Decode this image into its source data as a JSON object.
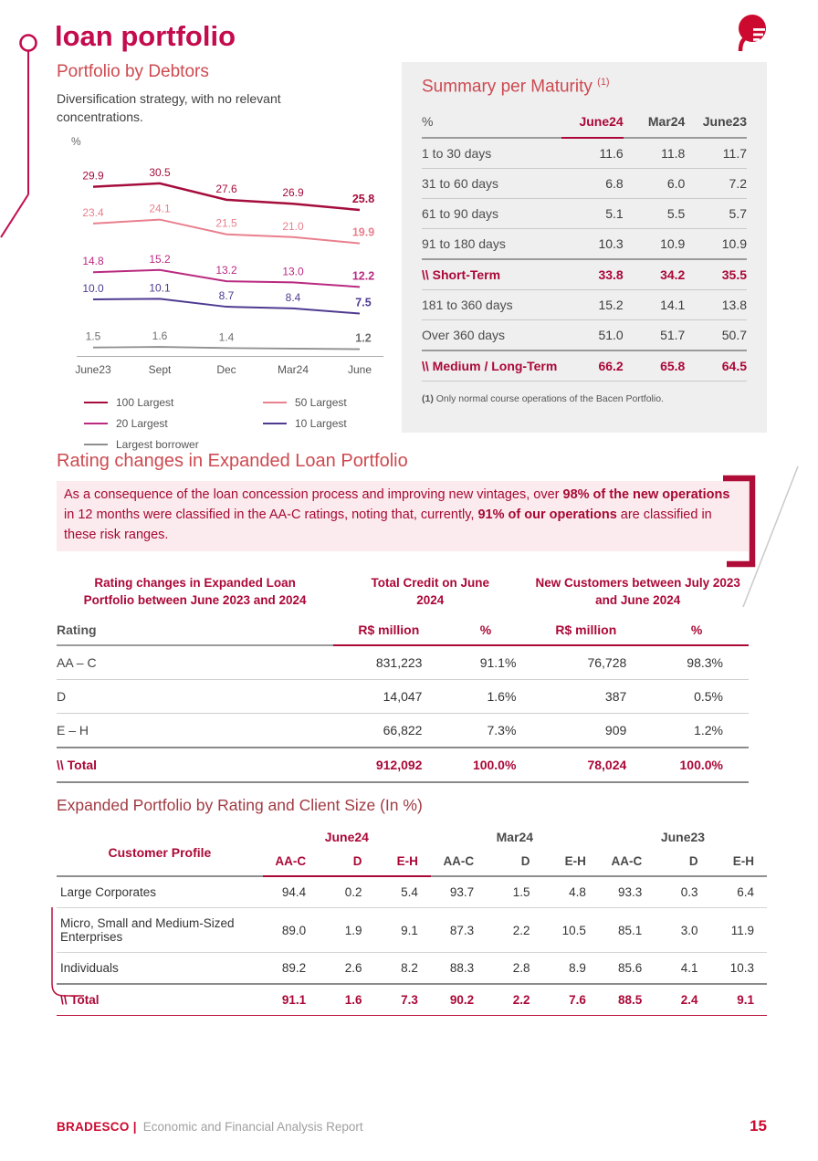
{
  "page": {
    "title": "loan portfolio"
  },
  "footer": {
    "brand": "BRADESCO |",
    "report_title": "Economic and Financial Analysis Report",
    "page_number": "15"
  },
  "portfolio_by_debtors": {
    "heading": "Portfolio by Debtors",
    "subtitle": "Diversification strategy, with no relevant concentrations.",
    "y_axis_label": "%",
    "chart_data": {
      "type": "line",
      "categories": [
        "June23",
        "Sept",
        "Dec",
        "Mar24",
        "June"
      ],
      "ylim": [
        0,
        33
      ],
      "grid": false,
      "legend_position": "bottom",
      "series": [
        {
          "name": "100 Largest",
          "color": "#a50d3c",
          "values": [
            29.9,
            30.5,
            27.6,
            26.9,
            25.8
          ],
          "labels": [
            "29.9",
            "30.5",
            "27.6",
            "26.9",
            "25.8"
          ]
        },
        {
          "name": "50 Largest",
          "color": "#e9808e",
          "values": [
            23.4,
            24.1,
            21.5,
            21.0,
            19.9
          ],
          "labels": [
            "23.4",
            "24.1",
            "21.5",
            "21.0",
            "19.9"
          ]
        },
        {
          "name": "20 Largest",
          "color": "#b92a80",
          "values": [
            14.8,
            15.2,
            13.2,
            13.0,
            12.2
          ],
          "labels": [
            "14.8",
            "15.2",
            "13.2",
            "13.0",
            "12.2"
          ]
        },
        {
          "name": "10 Largest",
          "color": "#4f3a91",
          "values": [
            10.0,
            10.1,
            8.7,
            8.4,
            7.5
          ],
          "labels": [
            "10.0",
            "10.1",
            "8.7",
            "8.4",
            "7.5"
          ]
        },
        {
          "name": "Largest borrower",
          "color": "#8f8f8f",
          "label_color": "#6e6e6e",
          "values": [
            1.5,
            1.6,
            1.4,
            1.3,
            1.2
          ],
          "labels": [
            "1.5",
            "1.6",
            "1.4",
            "",
            "1.2"
          ]
        }
      ]
    }
  },
  "summary_per_maturity": {
    "heading": "Summary per Maturity",
    "footnote_marker": "(1)",
    "unit_header": "%",
    "columns": [
      "June24",
      "Mar24",
      "June23"
    ],
    "rows": [
      {
        "label": "1 to 30 days",
        "values": [
          "11.6",
          "11.8",
          "11.7"
        ],
        "bold": false
      },
      {
        "label": "31 to 60 days",
        "values": [
          "6.8",
          "6.0",
          "7.2"
        ],
        "bold": false
      },
      {
        "label": "61 to 90 days",
        "values": [
          "5.1",
          "5.5",
          "5.7"
        ],
        "bold": false
      },
      {
        "label": "91 to 180 days",
        "values": [
          "10.3",
          "10.9",
          "10.9"
        ],
        "bold": false
      },
      {
        "label": "\\\\ Short-Term",
        "values": [
          "33.8",
          "34.2",
          "35.5"
        ],
        "bold": true
      },
      {
        "label": "181 to 360 days",
        "values": [
          "15.2",
          "14.1",
          "13.8"
        ],
        "bold": false
      },
      {
        "label": "Over 360 days",
        "values": [
          "51.0",
          "51.7",
          "50.7"
        ],
        "bold": false
      },
      {
        "label": "\\\\ Medium / Long-Term",
        "values": [
          "66.2",
          "65.8",
          "64.5"
        ],
        "bold": true
      }
    ],
    "footnote_bold": "(1)",
    "footnote_text": " Only normal course operations of the Bacen Portfolio."
  },
  "rating_changes": {
    "heading": "Rating changes in Expanded Loan Portfolio",
    "paragraph": [
      {
        "text": "As a consequence of the loan concession process and improving new vintages, over ",
        "bold": false
      },
      {
        "text": "98% of the new operations",
        "bold": true
      },
      {
        "text": " in 12 months were classified in the AA-C ratings, noting that, currently, ",
        "bold": false
      },
      {
        "text": "91% of our operations",
        "bold": true
      },
      {
        "text": " are classified in these risk ranges.",
        "bold": false
      }
    ],
    "table": {
      "group_headers": [
        "Rating changes in Expanded Loan Portfolio between June 2023 and 2024",
        "Total Credit on June 2024",
        "New Customers between July 2023 and June 2024"
      ],
      "rating_header": "Rating",
      "sub_columns": [
        "R$ million",
        "%",
        "R$ million",
        "%"
      ],
      "rows": [
        {
          "label": "AA – C",
          "values": [
            "831,223",
            "91.1%",
            "76,728",
            "98.3%"
          ],
          "bold": false
        },
        {
          "label": "D",
          "values": [
            "14,047",
            "1.6%",
            "387",
            "0.5%"
          ],
          "bold": false
        },
        {
          "label": "E – H",
          "values": [
            "66,822",
            "7.3%",
            "909",
            "1.2%"
          ],
          "bold": false
        },
        {
          "label": "\\\\ Total",
          "values": [
            "912,092",
            "100.0%",
            "78,024",
            "100.0%"
          ],
          "bold": true
        }
      ]
    }
  },
  "expanded_portfolio": {
    "heading": "Expanded Portfolio by Rating and Client Size (In %)",
    "row_header": "Customer Profile",
    "groups": [
      {
        "label": "June24",
        "highlight": true
      },
      {
        "label": "Mar24",
        "highlight": false
      },
      {
        "label": "June23",
        "highlight": false
      }
    ],
    "sub_columns": [
      "AA-C",
      "D",
      "E-H"
    ],
    "rows": [
      {
        "label": "Large Corporates",
        "values": [
          "94.4",
          "0.2",
          "5.4",
          "93.7",
          "1.5",
          "4.8",
          "93.3",
          "0.3",
          "6.4"
        ],
        "bold": false
      },
      {
        "label": "Micro, Small and Medium-Sized Enterprises",
        "values": [
          "89.0",
          "1.9",
          "9.1",
          "87.3",
          "2.2",
          "10.5",
          "85.1",
          "3.0",
          "11.9"
        ],
        "bold": false
      },
      {
        "label": "Individuals",
        "values": [
          "89.2",
          "2.6",
          "8.2",
          "88.3",
          "2.8",
          "8.9",
          "85.6",
          "4.1",
          "10.3"
        ],
        "bold": false
      },
      {
        "label": "\\\\ Total",
        "values": [
          "91.1",
          "1.6",
          "7.3",
          "90.2",
          "2.2",
          "7.6",
          "88.5",
          "2.4",
          "9.1"
        ],
        "bold": true
      }
    ]
  }
}
